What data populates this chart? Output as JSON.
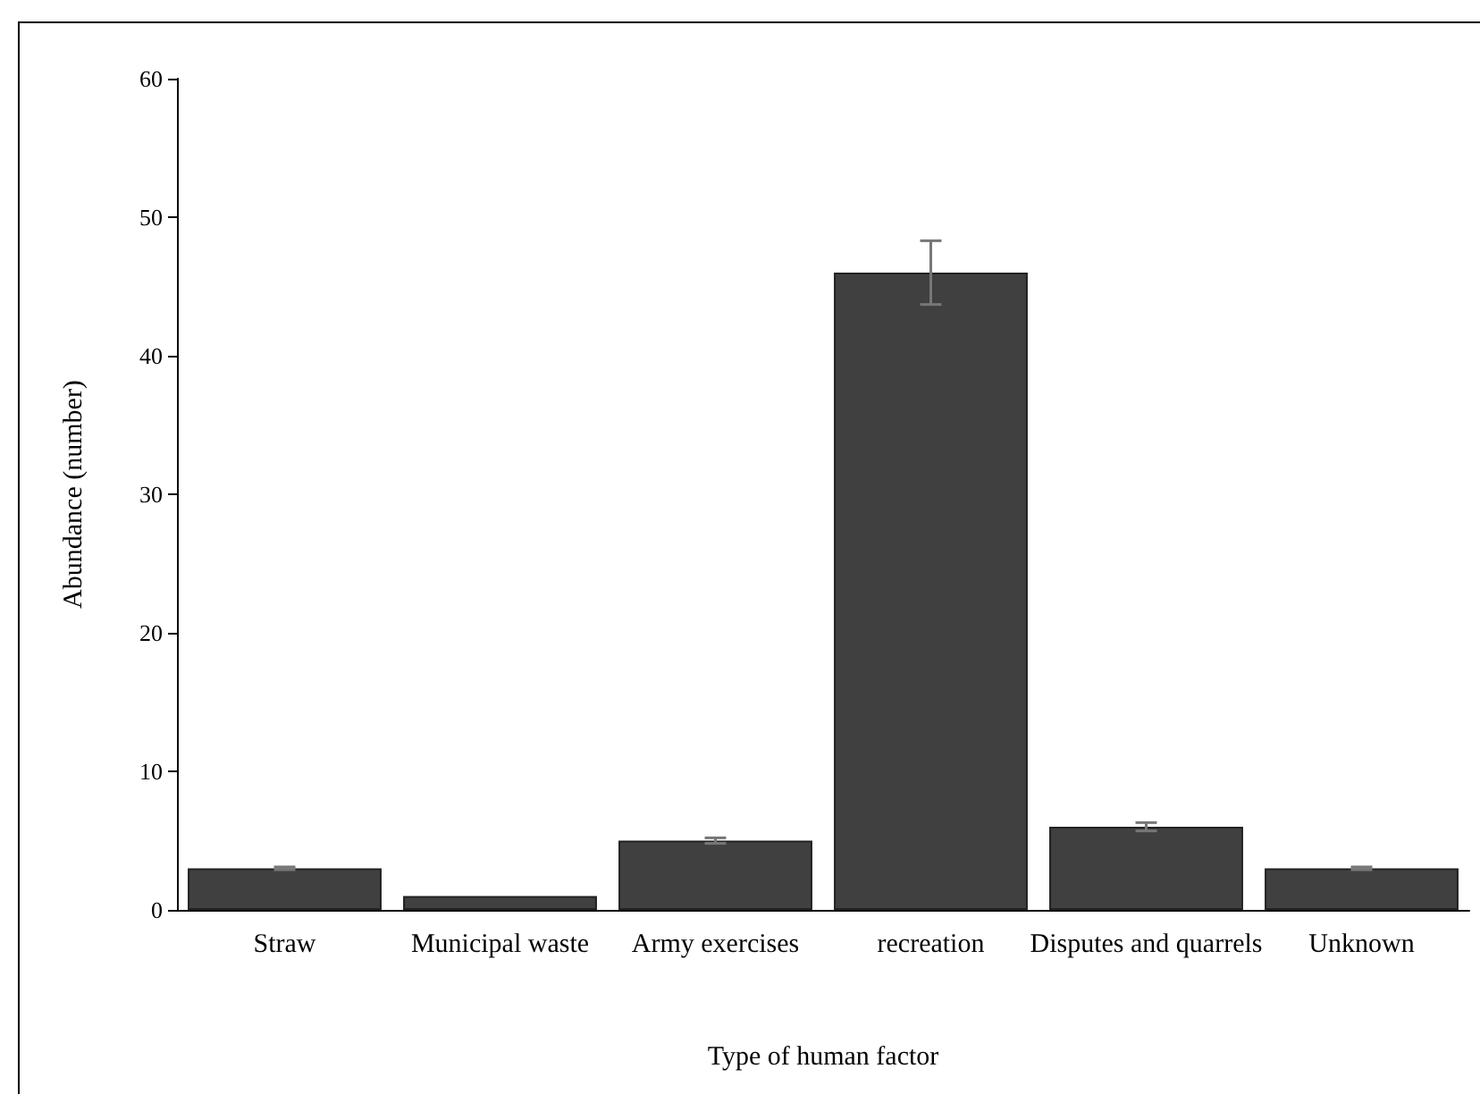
{
  "chart_data": {
    "type": "bar",
    "xlabel": "Type of human factor",
    "ylabel": "Abundance (number)",
    "categories": [
      "Straw",
      "Municipal waste",
      "Army exercises",
      "recreation",
      "Disputes and quarrels",
      "Unknown"
    ],
    "values": [
      3,
      1,
      5,
      46,
      6,
      3
    ],
    "errors": [
      0.1,
      null,
      0.2,
      2.3,
      0.3,
      0.1
    ],
    "color": "#404040",
    "ylim": [
      0,
      60
    ],
    "yticks": [
      0,
      10,
      20,
      30,
      40,
      50,
      60
    ],
    "grid": false
  }
}
